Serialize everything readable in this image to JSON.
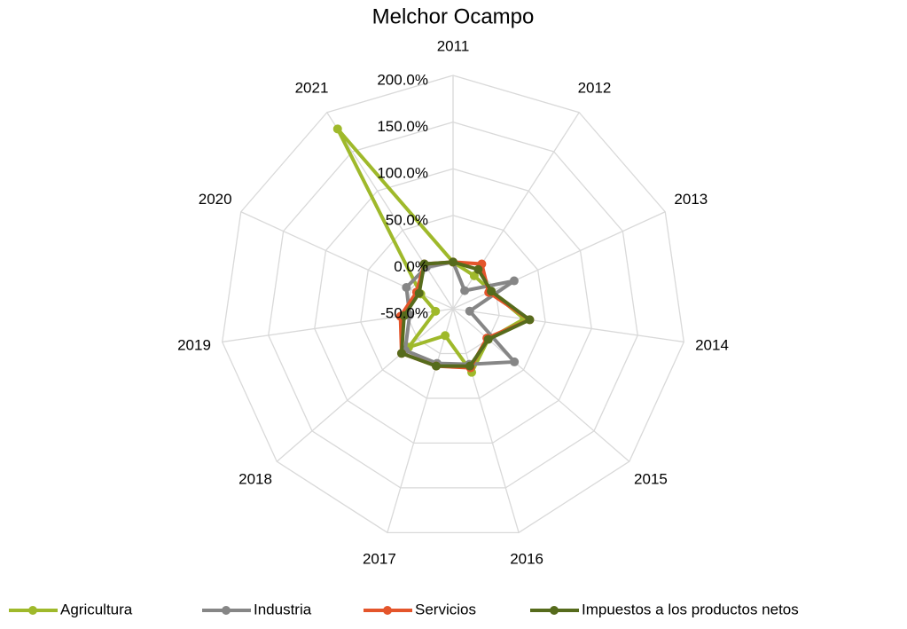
{
  "chart_data": {
    "type": "radar",
    "title": "Melchor Ocampo",
    "categories": [
      "2011",
      "2012",
      "2013",
      "2014",
      "2015",
      "2016",
      "2017",
      "2018",
      "2019",
      "2020",
      "2021"
    ],
    "ylim": [
      -50,
      200
    ],
    "yticks": [
      {
        "value": -50,
        "label": "-50.0%"
      },
      {
        "value": 0,
        "label": "0.0%"
      },
      {
        "value": 50,
        "label": "50.0%"
      },
      {
        "value": 100,
        "label": "100.0%"
      },
      {
        "value": 150,
        "label": "150.0%"
      },
      {
        "value": 200,
        "label": "200.0%"
      }
    ],
    "grid": true,
    "legend": "bottom",
    "series": [
      {
        "name": "Agricultura",
        "color": "#9fb92b",
        "values": [
          0,
          -8,
          -5,
          27,
          0,
          21,
          -20,
          13,
          -31,
          -12,
          179
        ]
      },
      {
        "name": "Industria",
        "color": "#868686",
        "values": [
          0,
          -27,
          22,
          -32,
          37,
          12,
          11,
          18,
          -3,
          5,
          3
        ]
      },
      {
        "name": "Servicios",
        "color": "#e4552b",
        "values": [
          0,
          7,
          -8,
          33,
          -2,
          16,
          14,
          23,
          7,
          -7,
          7
        ]
      },
      {
        "name": "Impuestos a los productos netos",
        "color": "#566b1c",
        "values": [
          0,
          0,
          -5,
          33,
          0,
          14,
          14,
          23,
          3,
          -10,
          7
        ]
      }
    ]
  }
}
